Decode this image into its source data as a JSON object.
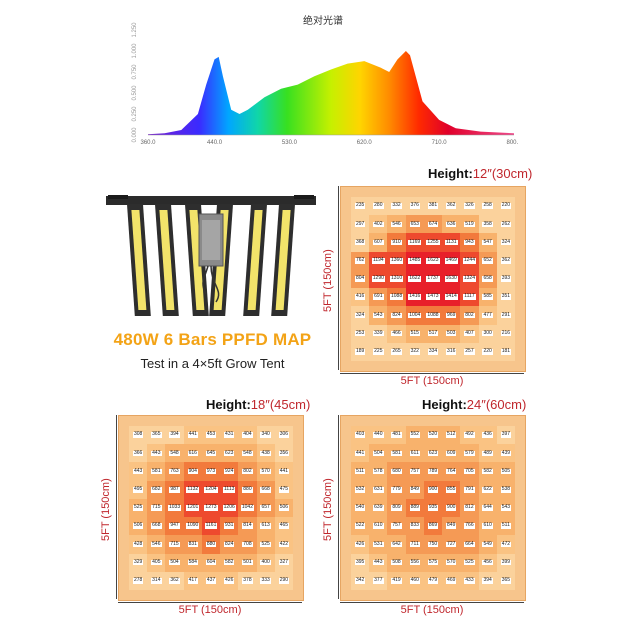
{
  "spectrum": {
    "title": "绝对光谱",
    "x_ticks": [
      "360.0",
      "440.0",
      "530.0",
      "620.0",
      "710.0",
      "800.0"
    ],
    "y_ticks": [
      "0.000",
      "0.250",
      "0.500",
      "0.750",
      "1.000",
      "1.250"
    ],
    "x_range": [
      360,
      800
    ],
    "curve": [
      [
        360,
        0.01
      ],
      [
        380,
        0.02
      ],
      [
        400,
        0.06
      ],
      [
        420,
        0.25
      ],
      [
        430,
        0.6
      ],
      [
        440,
        0.9
      ],
      [
        445,
        0.93
      ],
      [
        450,
        0.7
      ],
      [
        460,
        0.3
      ],
      [
        470,
        0.25
      ],
      [
        480,
        0.3
      ],
      [
        500,
        0.45
      ],
      [
        520,
        0.55
      ],
      [
        540,
        0.6
      ],
      [
        560,
        0.7
      ],
      [
        580,
        0.78
      ],
      [
        600,
        0.85
      ],
      [
        620,
        0.88
      ],
      [
        640,
        0.8
      ],
      [
        650,
        0.75
      ],
      [
        660,
        0.9
      ],
      [
        670,
        1.0
      ],
      [
        675,
        0.95
      ],
      [
        690,
        0.4
      ],
      [
        710,
        0.18
      ],
      [
        730,
        0.08
      ],
      [
        760,
        0.04
      ],
      [
        800,
        0.02
      ]
    ]
  },
  "product": {
    "headline": "480W 6 Bars PPFD MAP",
    "subline": "Test in a 4×5ft Grow Tent"
  },
  "panels": [
    {
      "height_label": "Height:",
      "height_value": "12″(30cm)",
      "side_label": "5FT (150cm)",
      "bottom_label": "5FT (150cm)",
      "rows": [
        [
          235,
          280,
          332,
          376,
          381,
          362,
          326,
          258,
          220
        ],
        [
          297,
          402,
          546,
          653,
          674,
          636,
          519,
          358,
          262
        ],
        [
          368,
          607,
          910,
          1169,
          1255,
          1131,
          943,
          547,
          324
        ],
        [
          762,
          1194,
          1360,
          1485,
          1623,
          1469,
          1244,
          652,
          362
        ],
        [
          804,
          1290,
          1310,
          1622,
          1737,
          1630,
          1324,
          658,
          393
        ],
        [
          416,
          691,
          1088,
          1416,
          1473,
          1414,
          1117,
          585,
          351
        ],
        [
          324,
          543,
          824,
          1004,
          1088,
          969,
          802,
          477,
          291
        ],
        [
          253,
          339,
          466,
          515,
          517,
          503,
          407,
          300,
          216
        ],
        [
          189,
          225,
          265,
          322,
          334,
          316,
          257,
          220,
          181
        ]
      ]
    },
    {
      "height_label": "Height:",
      "height_value": "18″(45cm)",
      "side_label": "5FT (150cm)",
      "bottom_label": "5FT (150cm)",
      "rows": [
        [
          308,
          365,
          394,
          441,
          453,
          431,
          404,
          340,
          306
        ],
        [
          366,
          443,
          548,
          616,
          645,
          623,
          548,
          438,
          356
        ],
        [
          443,
          581,
          763,
          904,
          973,
          924,
          802,
          570,
          441
        ],
        [
          495,
          682,
          987,
          1132,
          1204,
          1113,
          880,
          668,
          475
        ],
        [
          525,
          715,
          1033,
          1201,
          1273,
          1206,
          1042,
          657,
          506
        ],
        [
          506,
          668,
          947,
          1090,
          1161,
          931,
          814,
          613,
          465
        ],
        [
          428,
          546,
          715,
          831,
          880,
          824,
          708,
          525,
          422
        ],
        [
          329,
          405,
          504,
          584,
          604,
          582,
          501,
          400,
          327
        ],
        [
          278,
          314,
          362,
          417,
          437,
          426,
          378,
          333,
          290
        ]
      ]
    },
    {
      "height_label": "Height:",
      "height_value": "24″(60cm)",
      "side_label": "5FT (150cm)",
      "bottom_label": "5FT (150cm)",
      "rows": [
        [
          403,
          440,
          481,
          552,
          520,
          512,
          492,
          436,
          397
        ],
        [
          441,
          504,
          581,
          611,
          623,
          609,
          579,
          489,
          439
        ],
        [
          511,
          578,
          680,
          757,
          789,
          764,
          705,
          582,
          505
        ],
        [
          532,
          631,
          779,
          849,
          900,
          855,
          791,
          622,
          538
        ],
        [
          540,
          639,
          809,
          889,
          935,
          900,
          812,
          644,
          543
        ],
        [
          522,
          610,
          757,
          833,
          869,
          849,
          766,
          610,
          511
        ],
        [
          426,
          531,
          642,
          711,
          750,
          727,
          664,
          549,
          472
        ],
        [
          395,
          443,
          508,
          556,
          575,
          570,
          525,
          456,
          399
        ],
        [
          342,
          377,
          419,
          460,
          479,
          469,
          433,
          394,
          365
        ]
      ]
    }
  ]
}
